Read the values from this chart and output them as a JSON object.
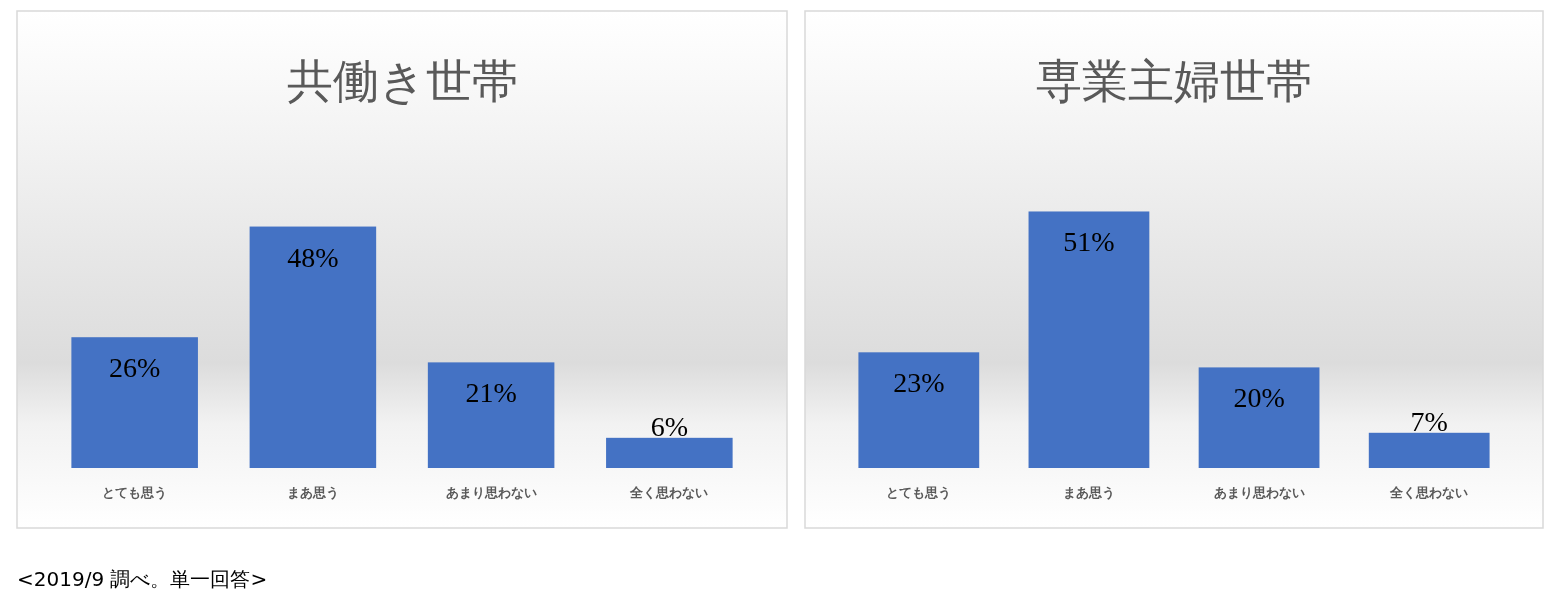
{
  "chart_data": [
    {
      "type": "bar",
      "title": "共働き世帯",
      "categories": [
        "とても思う",
        "まあ思う",
        "あまり思わない",
        "全く思わない"
      ],
      "values": [
        26,
        48,
        21,
        6
      ],
      "value_labels": [
        "26%",
        "48%",
        "21%",
        "6%"
      ],
      "color": "#4472c4",
      "annotations": [
        "<2019/9 調べ。単一回答>"
      ]
    },
    {
      "type": "bar",
      "title": "専業主婦世帯",
      "categories": [
        "とても思う",
        "まあ思う",
        "あまり思わない",
        "全く思わない"
      ],
      "values": [
        23,
        51,
        20,
        7
      ],
      "value_labels": [
        "23%",
        "51%",
        "20%",
        "7%"
      ],
      "color": "#4472c4"
    }
  ]
}
